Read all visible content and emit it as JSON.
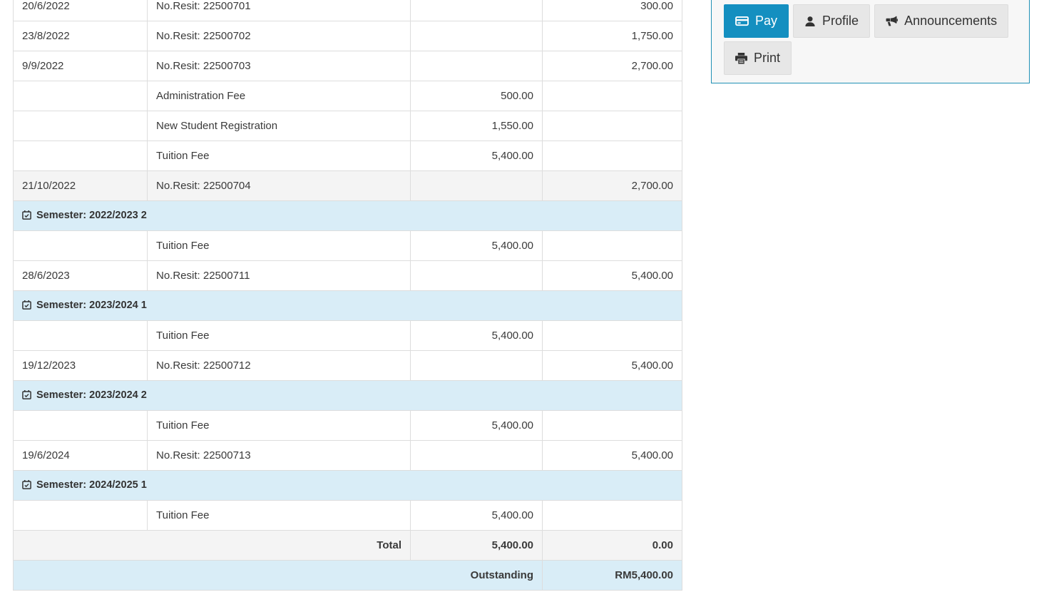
{
  "colors": {
    "accent": "#148fc0",
    "panel_border": "#2090b5",
    "semester_row_bg": "#d9edf7",
    "stripe_row_bg": "#f4f4f4",
    "table_border": "#dddddd",
    "button_bg": "#e7e7e7",
    "text": "#3a3a3a"
  },
  "actions": {
    "pay": {
      "label": "Pay",
      "icon": "credit-card-icon",
      "active": true
    },
    "profile": {
      "label": "Profile",
      "icon": "user-icon",
      "active": false
    },
    "announcements": {
      "label": "Announcements",
      "icon": "bullhorn-icon",
      "active": false
    },
    "print": {
      "label": "Print",
      "icon": "printer-icon",
      "active": false
    }
  },
  "table": {
    "columns": [
      "date",
      "description",
      "debit",
      "credit"
    ],
    "rows": [
      {
        "kind": "entry",
        "date": "20/6/2022",
        "desc": "No.Resit: 22500701",
        "debit": "",
        "credit": "300.00",
        "shade": false
      },
      {
        "kind": "entry",
        "date": "23/8/2022",
        "desc": "No.Resit: 22500702",
        "debit": "",
        "credit": "1,750.00",
        "shade": false
      },
      {
        "kind": "entry",
        "date": "9/9/2022",
        "desc": "No.Resit: 22500703",
        "debit": "",
        "credit": "2,700.00",
        "shade": false
      },
      {
        "kind": "entry",
        "date": "",
        "desc": "Administration Fee",
        "debit": "500.00",
        "credit": "",
        "shade": false
      },
      {
        "kind": "entry",
        "date": "",
        "desc": "New Student Registration",
        "debit": "1,550.00",
        "credit": "",
        "shade": false
      },
      {
        "kind": "entry",
        "date": "",
        "desc": "Tuition Fee",
        "debit": "5,400.00",
        "credit": "",
        "shade": false
      },
      {
        "kind": "entry",
        "date": "21/10/2022",
        "desc": "No.Resit: 22500704",
        "debit": "",
        "credit": "2,700.00",
        "shade": true
      },
      {
        "kind": "semester",
        "label": "Semester: 2022/2023 2",
        "icon": "calendar-check-icon"
      },
      {
        "kind": "entry",
        "date": "",
        "desc": "Tuition Fee",
        "debit": "5,400.00",
        "credit": "",
        "shade": false
      },
      {
        "kind": "entry",
        "date": "28/6/2023",
        "desc": "No.Resit: 22500711",
        "debit": "",
        "credit": "5,400.00",
        "shade": false
      },
      {
        "kind": "semester",
        "label": "Semester: 2023/2024 1",
        "icon": "calendar-check-icon"
      },
      {
        "kind": "entry",
        "date": "",
        "desc": "Tuition Fee",
        "debit": "5,400.00",
        "credit": "",
        "shade": false
      },
      {
        "kind": "entry",
        "date": "19/12/2023",
        "desc": "No.Resit: 22500712",
        "debit": "",
        "credit": "5,400.00",
        "shade": false
      },
      {
        "kind": "semester",
        "label": "Semester: 2023/2024 2",
        "icon": "calendar-check-icon"
      },
      {
        "kind": "entry",
        "date": "",
        "desc": "Tuition Fee",
        "debit": "5,400.00",
        "credit": "",
        "shade": false
      },
      {
        "kind": "entry",
        "date": "19/6/2024",
        "desc": "No.Resit: 22500713",
        "debit": "",
        "credit": "5,400.00",
        "shade": false
      },
      {
        "kind": "semester",
        "label": "Semester: 2024/2025 1",
        "icon": "calendar-check-icon"
      },
      {
        "kind": "entry",
        "date": "",
        "desc": "Tuition Fee",
        "debit": "5,400.00",
        "credit": "",
        "shade": false
      },
      {
        "kind": "total",
        "label": "Total",
        "debit": "5,400.00",
        "credit": "0.00"
      },
      {
        "kind": "outstanding",
        "label": "Outstanding",
        "amount": "RM5,400.00"
      }
    ]
  }
}
